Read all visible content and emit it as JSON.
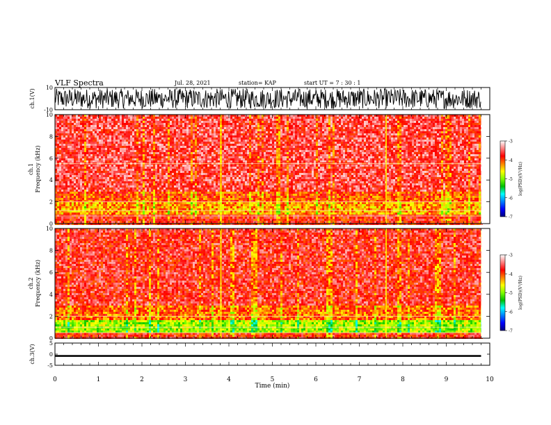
{
  "header": {
    "title": "VLF Spectra",
    "date": "Jul. 28, 2021",
    "station": "station= KAP",
    "start_ut": "start UT =  7 : 30 : 1"
  },
  "colorbar": {
    "label": "log(PSD)(V²/Hz)",
    "ticks": [
      "-3",
      "-4",
      "-5",
      "-6",
      "-7"
    ],
    "colors": [
      "#ffffff",
      "#ff8080",
      "#ff0000",
      "#ff8000",
      "#ffff00",
      "#80ff00",
      "#00c000",
      "#00ffff",
      "#0080ff",
      "#0000ff",
      "#000080"
    ]
  },
  "chart_data": [
    {
      "type": "line",
      "name": "ch1-waveform",
      "ylabel": "ch.1(V)",
      "ylim": [
        -10,
        10
      ],
      "y_ticks": [
        "10",
        "-10"
      ],
      "xlim": [
        0,
        10
      ],
      "x_end": 9.8,
      "amplitude": [
        -9,
        9
      ]
    },
    {
      "type": "heatmap",
      "name": "ch1-spectrogram",
      "ylabel": "ch.1 Frequency (kHz)",
      "ylabel_line1": "ch.1",
      "ylabel_line2": "Frequency (kHz)",
      "ylim": [
        0,
        10
      ],
      "y_ticks": [
        "0",
        "2",
        "4",
        "6",
        "8",
        "10"
      ],
      "xlim": [
        0,
        10
      ],
      "x_end": 9.8,
      "bands": [
        {
          "f_low": 0,
          "f_high": 1.0,
          "log_psd": -3.8
        },
        {
          "f_low": 1.0,
          "f_high": 2.0,
          "log_psd": -4.3
        },
        {
          "f_low": 2.0,
          "f_high": 3.0,
          "log_psd": -4.0
        },
        {
          "f_low": 3.0,
          "f_high": 10.0,
          "log_psd": -3.6
        }
      ],
      "line_features_khz": [
        0.7,
        1.2,
        2.0,
        5.5
      ],
      "bursts_min": [
        3.8,
        7.6
      ]
    },
    {
      "type": "heatmap",
      "name": "ch2-spectrogram",
      "ylabel": "ch.2 Frequency (kHz)",
      "ylabel_line1": "ch.2",
      "ylabel_line2": "Frequency (kHz)",
      "ylim": [
        0,
        10
      ],
      "y_ticks": [
        "0",
        "2",
        "4",
        "6",
        "8",
        "10"
      ],
      "xlim": [
        0,
        10
      ],
      "x_end": 9.8,
      "bands": [
        {
          "f_low": 0,
          "f_high": 0.6,
          "log_psd": -3.8
        },
        {
          "f_low": 0.6,
          "f_high": 1.8,
          "log_psd": -4.9
        },
        {
          "f_low": 1.8,
          "f_high": 3.0,
          "log_psd": -4.1
        },
        {
          "f_low": 3.0,
          "f_high": 10.0,
          "log_psd": -3.7
        }
      ],
      "line_features_khz": [
        0.5,
        1.0,
        2.0
      ],
      "bursts_min": [
        3.8,
        7.6
      ]
    },
    {
      "type": "line",
      "name": "ch3-waveform",
      "ylabel": "ch.3(V)",
      "ylim": [
        -5,
        5
      ],
      "y_ticks": [
        "5",
        "0",
        "-5"
      ],
      "xlim": [
        0,
        10
      ],
      "x_end": 9.8,
      "amplitude": [
        -1.2,
        -0.4
      ]
    }
  ],
  "x_axis": {
    "label": "Time (min)",
    "ticks": [
      "0",
      "1",
      "2",
      "3",
      "4",
      "5",
      "6",
      "7",
      "8",
      "9",
      "10"
    ]
  }
}
